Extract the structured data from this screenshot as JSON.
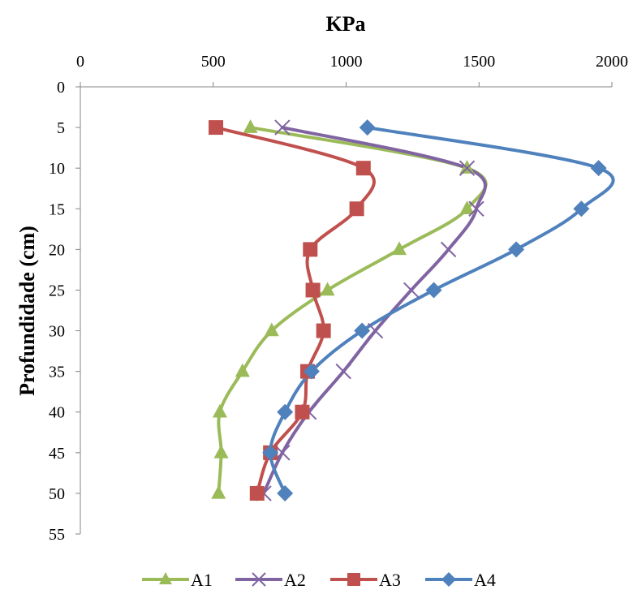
{
  "chart_data": {
    "type": "line",
    "title": "",
    "xlabel": "KPa",
    "ylabel": "Profundidade (cm)",
    "x_axis_position": "top",
    "y_axis_inverted": true,
    "xlim": [
      0,
      2000
    ],
    "ylim": [
      0,
      55
    ],
    "x_ticks": [
      0,
      500,
      1000,
      1500,
      2000
    ],
    "y_ticks": [
      0,
      5,
      10,
      15,
      20,
      25,
      30,
      35,
      40,
      45,
      50,
      55
    ],
    "grid": false,
    "legend_position": "bottom",
    "series": [
      {
        "name": "A1",
        "color": "#9bbb59",
        "marker": "triangle",
        "points": [
          [
            640,
            5
          ],
          [
            1455,
            10
          ],
          [
            1455,
            15
          ],
          [
            1200,
            20
          ],
          [
            930,
            25
          ],
          [
            720,
            30
          ],
          [
            610,
            35
          ],
          [
            525,
            40
          ],
          [
            530,
            45
          ],
          [
            520,
            50
          ]
        ]
      },
      {
        "name": "A2",
        "color": "#8064a2",
        "marker": "x",
        "points": [
          [
            760,
            5
          ],
          [
            1455,
            10
          ],
          [
            1490,
            15
          ],
          [
            1385,
            20
          ],
          [
            1245,
            25
          ],
          [
            1110,
            30
          ],
          [
            990,
            35
          ],
          [
            860,
            40
          ],
          [
            760,
            45
          ],
          [
            690,
            50
          ]
        ]
      },
      {
        "name": "A3",
        "color": "#c0504d",
        "marker": "square",
        "points": [
          [
            510,
            5
          ],
          [
            1065,
            10
          ],
          [
            1040,
            15
          ],
          [
            865,
            20
          ],
          [
            875,
            25
          ],
          [
            915,
            30
          ],
          [
            855,
            35
          ],
          [
            835,
            40
          ],
          [
            715,
            45
          ],
          [
            665,
            50
          ]
        ]
      },
      {
        "name": "A4",
        "color": "#4f81bd",
        "marker": "diamond",
        "points": [
          [
            1080,
            5
          ],
          [
            1950,
            10
          ],
          [
            1885,
            15
          ],
          [
            1640,
            20
          ],
          [
            1330,
            25
          ],
          [
            1060,
            30
          ],
          [
            870,
            35
          ],
          [
            770,
            40
          ],
          [
            715,
            45
          ],
          [
            770,
            50
          ]
        ]
      }
    ]
  }
}
